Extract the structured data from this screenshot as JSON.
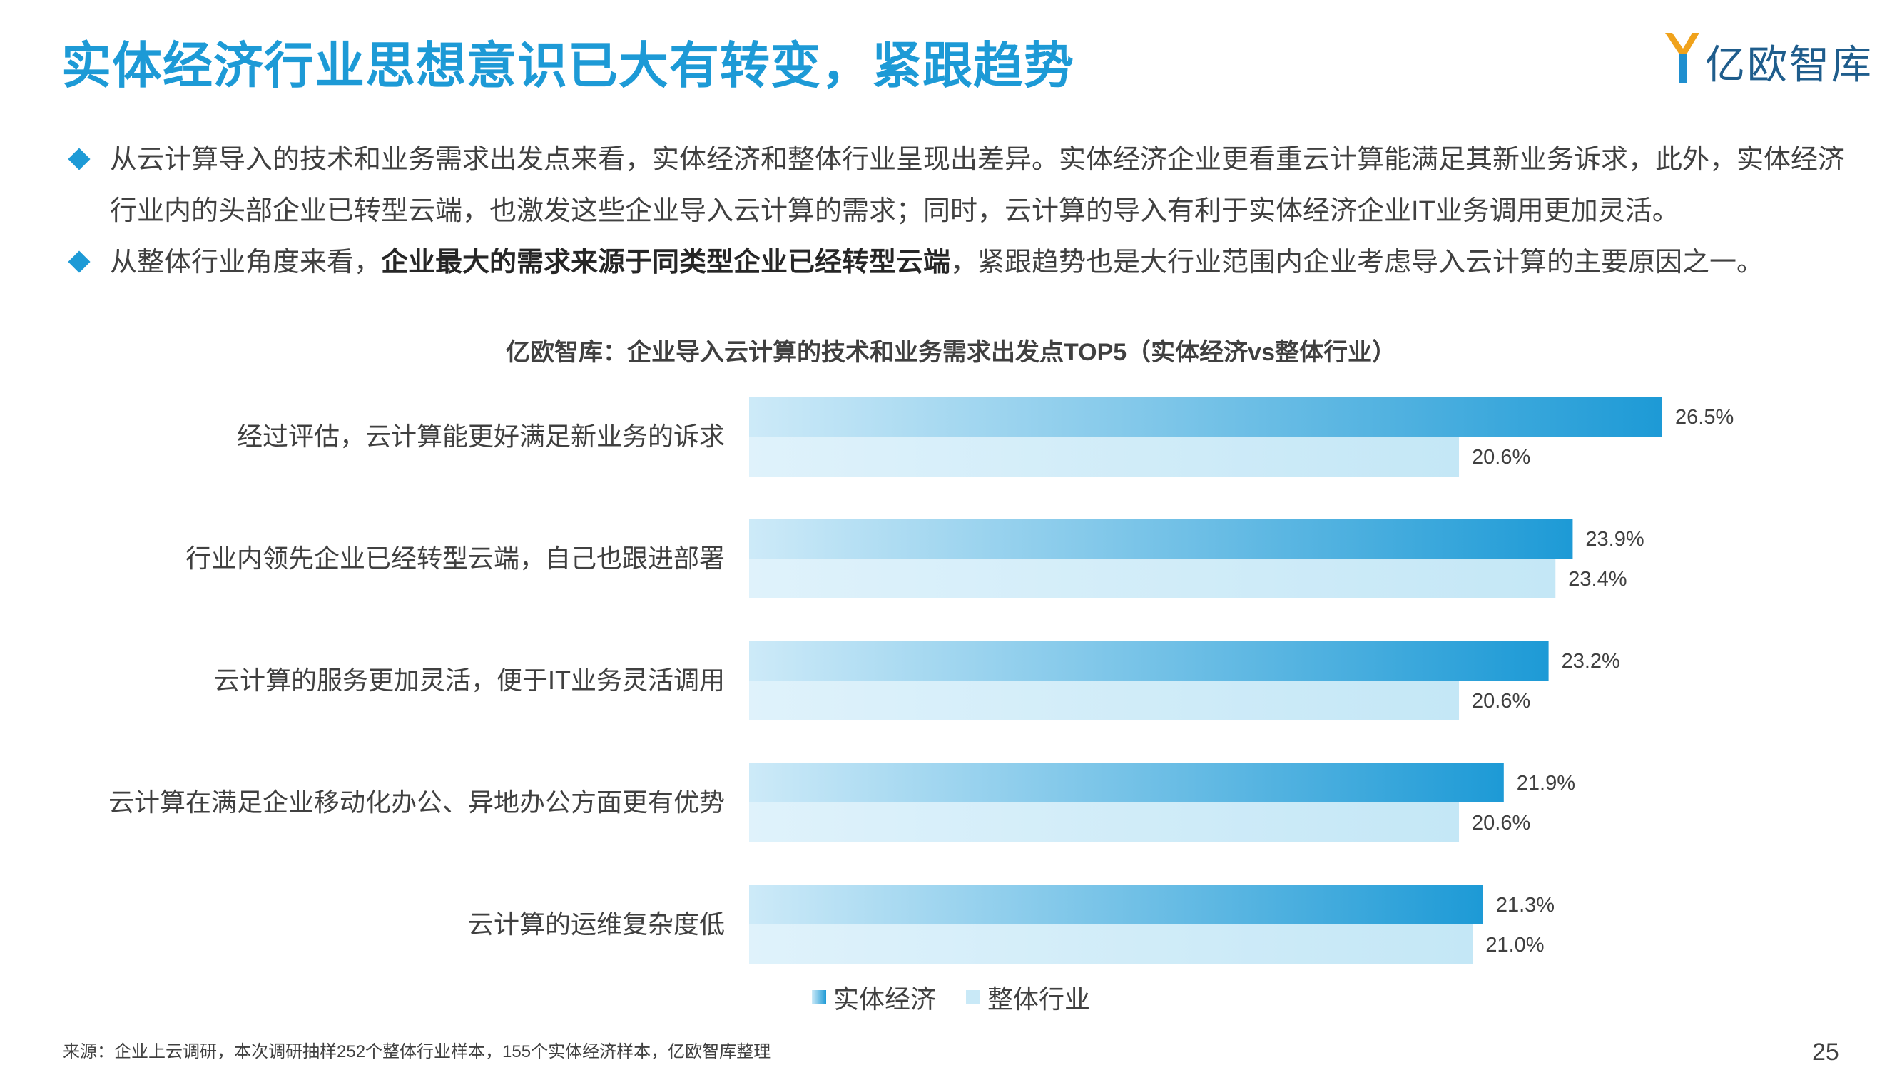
{
  "header": {
    "title": "实体经济行业思想意识已大有转变，紧跟趋势",
    "logo_text": "亿欧智库"
  },
  "bullets": [
    {
      "text": "从云计算导入的技术和业务需求出发点来看，实体经济和整体行业呈现出差异。实体经济企业更看重云计算能满足其新业务诉求，此外，实体经济行业内的头部企业已转型云端，也激发这些企业导入云计算的需求；同时，云计算的导入有利于实体经济企业IT业务调用更加灵活。"
    },
    {
      "prefix": "从整体行业角度来看，",
      "bold": "企业最大的需求来源于同类型企业已经转型云端",
      "suffix": "，紧跟趋势也是大行业范围内企业考虑导入云计算的主要原因之一。"
    }
  ],
  "chart_data": {
    "type": "bar",
    "orientation": "horizontal",
    "title": "亿欧智库：企业导入云计算的技术和业务需求出发点TOP5（实体经济vs整体行业）",
    "categories": [
      "经过评估，云计算能更好满足新业务的诉求",
      "行业内领先企业已经转型云端，自己也跟进部署",
      "云计算的服务更加灵活，便于IT业务灵活调用",
      "云计算在满足企业移动化办公、异地办公方面更有优势",
      "云计算的运维复杂度低"
    ],
    "series": [
      {
        "name": "实体经济",
        "values": [
          26.5,
          23.9,
          23.2,
          21.9,
          21.3
        ],
        "color": "#1d9ad6",
        "color_light": "#cdeaf8"
      },
      {
        "name": "整体行业",
        "values": [
          20.6,
          23.4,
          20.6,
          20.6,
          21.0
        ],
        "color": "#c9e9f7",
        "color_light": "#dff2fb"
      }
    ],
    "value_labels": [
      [
        "26.5%",
        "23.9%",
        "23.2%",
        "21.9%",
        "21.3%"
      ],
      [
        "20.6%",
        "23.4%",
        "20.6%",
        "20.6%",
        "21.0%"
      ]
    ],
    "xlim": [
      0,
      30
    ],
    "legend": "bottom",
    "grid": false
  },
  "footer": {
    "source": "来源：企业上云调研，本次调研抽样252个整体行业样本，155个实体经济样本，亿欧智库整理",
    "page_number": "25"
  }
}
